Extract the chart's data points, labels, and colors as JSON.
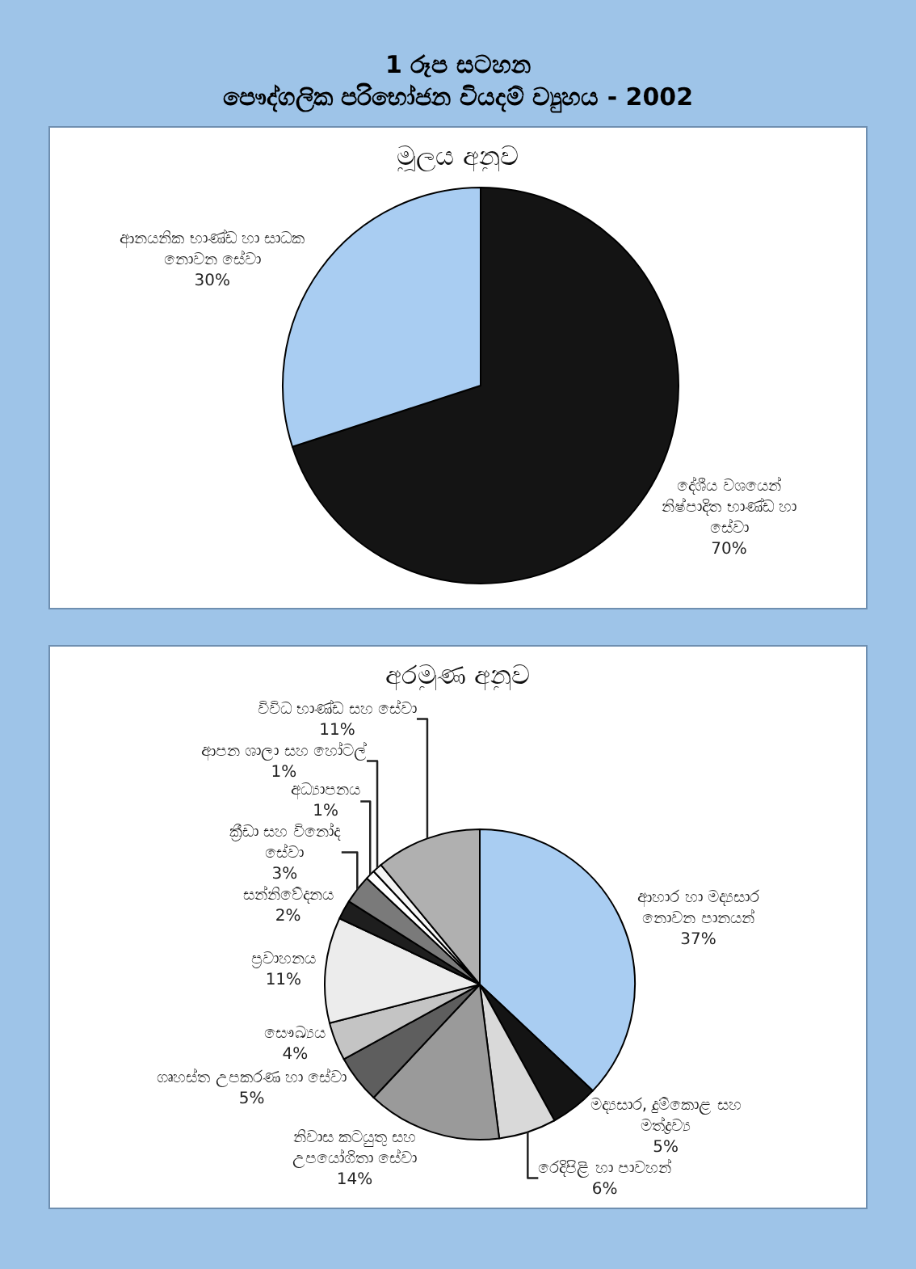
{
  "chart_data": [
    {
      "type": "pie",
      "title": "1 රූප සටහන\nපෞද්ගලික පරිභෝජන වියදම් ව්‍යුහය - 2002",
      "subtitle": "මූලය අනුව",
      "categories": [
        "දේශීය වශයෙන් නිෂ්පාදිත භාණ්ඩ හා සේවා",
        "ආනයනික භාණ්ඩ හා සාධක නොවන සේවා"
      ],
      "values": [
        70,
        30
      ],
      "value_labels": [
        "70%",
        "30%"
      ],
      "colors": [
        "#141414",
        "#a9cdf2"
      ]
    },
    {
      "type": "pie",
      "title": "අරමුණ අනුව",
      "categories": [
        "ආහාර හා මද්‍යසාර නොවන පානයන්",
        "මද්‍යසාර, දුම්කොළ සහ මත්ද්‍රව්‍ය",
        "රෙදිපිළි හා පාවහන්",
        "නිවාස කටයුතු සහ උපයෝගිතා සේවා",
        "ගෘහස්ත උපකරණ හා සේවා",
        "සෞඛ්‍යය",
        "ප්‍රවාහනය",
        "සන්නිවේදනය",
        "ක්‍රීඩා සහ විනෝද සේවා",
        "අධ්‍යාපනය",
        "ආපන ශාලා සහ හෝටල්",
        "විවිධ භාණ්ඩ සහ සේවා"
      ],
      "values": [
        37,
        5,
        6,
        14,
        5,
        4,
        11,
        2,
        3,
        1,
        1,
        11
      ],
      "value_labels": [
        "37%",
        "5%",
        "6%",
        "14%",
        "5%",
        "4%",
        "11%",
        "2%",
        "3%",
        "1%",
        "1%",
        "11%"
      ],
      "colors": [
        "#a9cdf2",
        "#141414",
        "#d9d9d9",
        "#9a9a9a",
        "#5e5e5e",
        "#c4c4c4",
        "#ececec",
        "#1e1e1e",
        "#7a7a7a",
        "#ffffff",
        "#f5f5f5",
        "#b0b0b0"
      ]
    }
  ]
}
